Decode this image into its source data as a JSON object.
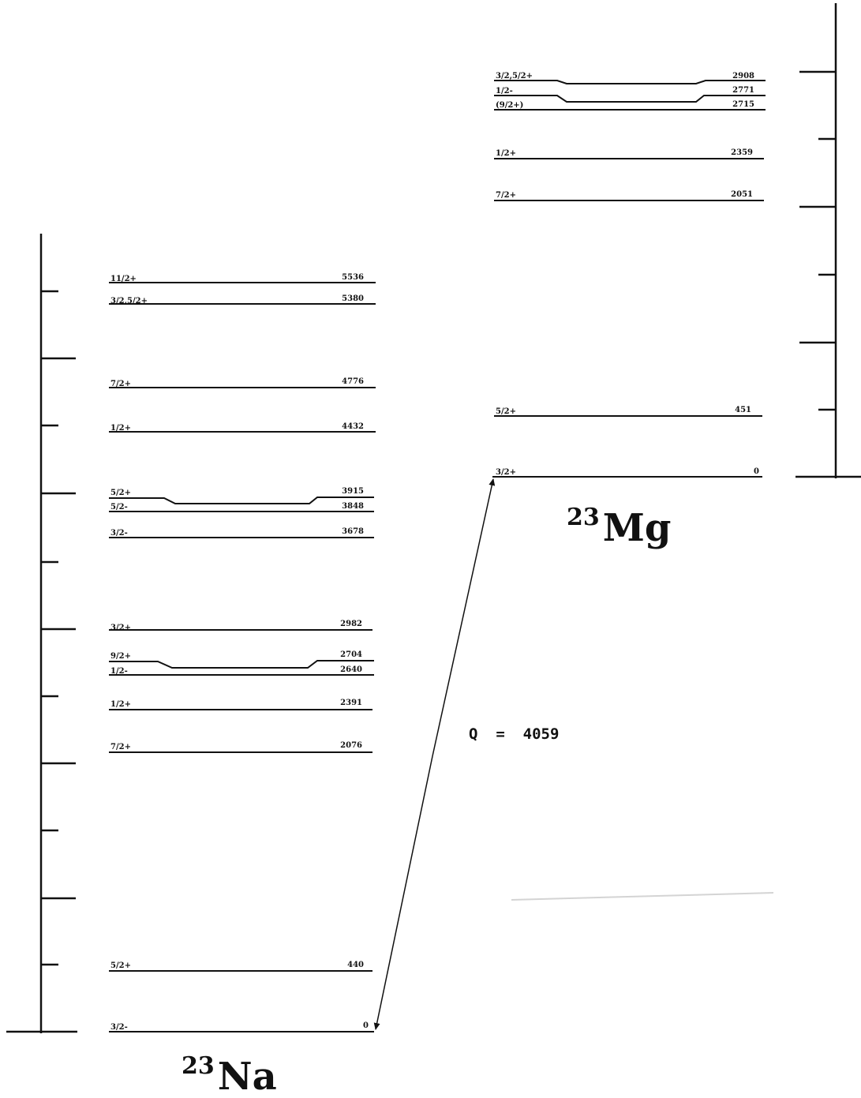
{
  "left_nucleus": {
    "mass_number": "23",
    "symbol": "Na",
    "levels": [
      {
        "spin": "3/2-",
        "energy": "0"
      },
      {
        "spin": "5/2+",
        "energy": "440"
      },
      {
        "spin": "7/2+",
        "energy": "2076"
      },
      {
        "spin": "1/2+",
        "energy": "2391"
      },
      {
        "spin": "1/2-",
        "energy": "2640"
      },
      {
        "spin": "9/2+",
        "energy": "2704"
      },
      {
        "spin": "3/2+",
        "energy": "2982"
      },
      {
        "spin": "3/2-",
        "energy": "3678"
      },
      {
        "spin": "5/2-",
        "energy": "3848"
      },
      {
        "spin": "5/2+",
        "energy": "3915"
      },
      {
        "spin": "1/2+",
        "energy": "4432"
      },
      {
        "spin": "7/2+",
        "energy": "4776"
      },
      {
        "spin": "3/2,5/2+",
        "energy": "5380"
      },
      {
        "spin": "11/2+",
        "energy": "5536"
      }
    ]
  },
  "right_nucleus": {
    "mass_number": "23",
    "symbol": "Mg",
    "levels": [
      {
        "spin": "3/2+",
        "energy": "0"
      },
      {
        "spin": "5/2+",
        "energy": "451"
      },
      {
        "spin": "7/2+",
        "energy": "2051"
      },
      {
        "spin": "1/2+",
        "energy": "2359"
      },
      {
        "spin": "(9/2+)",
        "energy": "2715"
      },
      {
        "spin": "1/2-",
        "energy": "2771"
      },
      {
        "spin": "3/2,5/2+",
        "energy": "2908"
      }
    ]
  },
  "transition": {
    "label": "Q  =  4059"
  }
}
